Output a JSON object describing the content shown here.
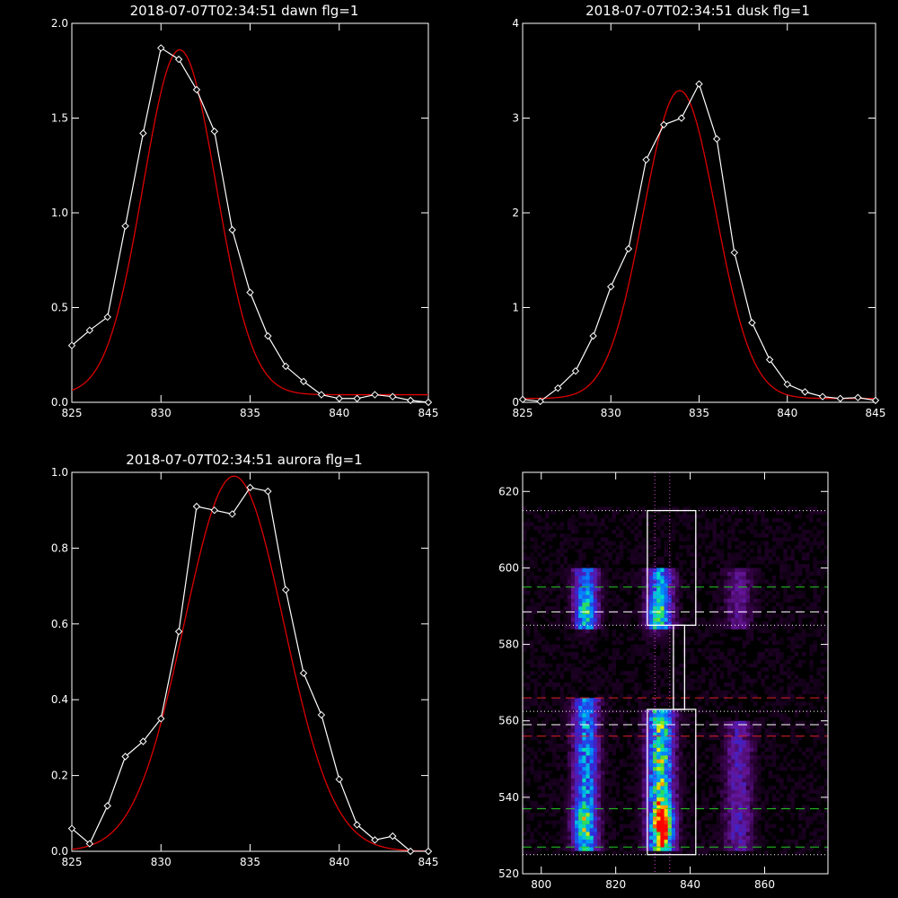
{
  "colors": {
    "background": "#000000",
    "axis": "#ffffff",
    "data": "#ffffff",
    "fit": "#dd0000",
    "box": "#ffffff",
    "dotted_line": "#ffffff",
    "green_dashed": "#22cc22",
    "red_dashed": "#dd2222",
    "white_dashed": "#ffffff",
    "magenta_dotted": "#dd44dd"
  },
  "chart_data": [
    {
      "type": "line",
      "title": "2018-07-07T02:34:51 dawn flg=1",
      "xlabel": "",
      "ylabel": "",
      "xlim": [
        825,
        845
      ],
      "ylim": [
        0,
        2.0
      ],
      "xticks": [
        825,
        830,
        835,
        840,
        845
      ],
      "xtick_labels": [
        "825",
        "830",
        "835",
        "840",
        "845"
      ],
      "yticks": [
        0,
        0.5,
        1.0,
        1.5,
        2.0
      ],
      "ytick_labels": [
        "0.0",
        "0.5",
        "1.0",
        "1.5",
        "2.0"
      ],
      "marker": "diamond",
      "x": [
        825,
        826,
        827,
        828,
        829,
        830,
        831,
        832,
        833,
        834,
        835,
        836,
        837,
        838,
        839,
        840,
        841,
        842,
        843,
        844,
        845
      ],
      "y": [
        0.3,
        0.38,
        0.45,
        0.93,
        1.42,
        1.87,
        1.81,
        1.65,
        1.43,
        0.91,
        0.58,
        0.35,
        0.19,
        0.11,
        0.04,
        0.02,
        0.02,
        0.04,
        0.03,
        0.01,
        0.0
      ],
      "fit": {
        "type": "gaussian",
        "amplitude": 1.82,
        "center": 831.05,
        "sigma": 2.05,
        "offset": 0.04
      }
    },
    {
      "type": "line",
      "title": "2018-07-07T02:34:51 dusk flg=1",
      "xlabel": "",
      "ylabel": "",
      "xlim": [
        825,
        845
      ],
      "ylim": [
        0,
        4
      ],
      "xticks": [
        825,
        830,
        835,
        840,
        845
      ],
      "xtick_labels": [
        "825",
        "830",
        "835",
        "840",
        "845"
      ],
      "yticks": [
        0,
        1,
        2,
        3,
        4
      ],
      "ytick_labels": [
        "0",
        "1",
        "2",
        "3",
        "4"
      ],
      "marker": "diamond",
      "x": [
        825,
        826,
        827,
        828,
        829,
        830,
        831,
        832,
        833,
        834,
        835,
        836,
        837,
        838,
        839,
        840,
        841,
        842,
        843,
        844,
        845
      ],
      "y": [
        0.03,
        0.01,
        0.15,
        0.33,
        0.7,
        1.22,
        1.62,
        2.56,
        2.93,
        3.0,
        3.36,
        2.78,
        1.58,
        0.84,
        0.45,
        0.19,
        0.11,
        0.06,
        0.04,
        0.05,
        0.02
      ],
      "fit": {
        "type": "gaussian",
        "amplitude": 3.25,
        "center": 833.9,
        "sigma": 2.05,
        "offset": 0.04
      }
    },
    {
      "type": "line",
      "title": "2018-07-07T02:34:51 aurora flg=1",
      "xlabel": "",
      "ylabel": "",
      "xlim": [
        825,
        845
      ],
      "ylim": [
        0,
        1.0
      ],
      "xticks": [
        825,
        830,
        835,
        840,
        845
      ],
      "xtick_labels": [
        "825",
        "830",
        "835",
        "840",
        "845"
      ],
      "yticks": [
        0,
        0.2,
        0.4,
        0.6,
        0.8,
        1.0
      ],
      "ytick_labels": [
        "0.0",
        "0.2",
        "0.4",
        "0.6",
        "0.8",
        "1.0"
      ],
      "marker": "diamond",
      "x": [
        825,
        826,
        827,
        828,
        829,
        830,
        831,
        832,
        833,
        834,
        835,
        836,
        837,
        838,
        839,
        840,
        841,
        842,
        843,
        844,
        845
      ],
      "y": [
        0.06,
        0.02,
        0.12,
        0.25,
        0.29,
        0.35,
        0.58,
        0.91,
        0.9,
        0.89,
        0.96,
        0.95,
        0.69,
        0.47,
        0.36,
        0.19,
        0.07,
        0.03,
        0.04,
        0.0,
        0.0
      ],
      "fit": {
        "type": "gaussian",
        "amplitude": 0.99,
        "center": 834.1,
        "sigma": 2.8,
        "offset": 0.0
      }
    },
    {
      "type": "heatmap",
      "title": "",
      "xlabel": "",
      "ylabel": "",
      "xlim": [
        795,
        877
      ],
      "ylim": [
        520,
        625
      ],
      "xticks": [
        800,
        820,
        840,
        860
      ],
      "xtick_labels": [
        "800",
        "820",
        "840",
        "860"
      ],
      "yticks": [
        520,
        540,
        560,
        580,
        600,
        620
      ],
      "ytick_labels": [
        "520",
        "540",
        "560",
        "580",
        "600",
        "620"
      ],
      "colormap": "rainbow",
      "emission_columns": [
        {
          "center": 812,
          "width": 2.2,
          "segments": [
            [
              526,
              566,
              0.55
            ],
            [
              584,
              600,
              0.45
            ]
          ]
        },
        {
          "center": 832,
          "width": 2.3,
          "segments": [
            [
              526,
              563,
              0.8
            ],
            [
              584,
              600,
              0.55
            ]
          ]
        },
        {
          "center": 853,
          "width": 2.5,
          "segments": [
            [
              526,
              560,
              0.25
            ],
            [
              584,
              600,
              0.18
            ]
          ]
        }
      ],
      "hotspots": [
        {
          "x": 833,
          "y": 533,
          "intensity": 1.0
        },
        {
          "x": 811,
          "y": 533,
          "intensity": 0.6
        },
        {
          "x": 812,
          "y": 589,
          "intensity": 0.5
        },
        {
          "x": 831,
          "y": 588,
          "intensity": 0.55
        }
      ],
      "boxes": [
        {
          "x0": 828.5,
          "x1": 841.5,
          "y0": 585,
          "y1": 615
        },
        {
          "x0": 835.5,
          "x1": 838.5,
          "y0": 563,
          "y1": 585
        },
        {
          "x0": 828.5,
          "x1": 841.5,
          "y0": 525,
          "y1": 563
        }
      ],
      "horizontal_lines": [
        {
          "y": 615,
          "style": "dotted",
          "color": "#ffffff"
        },
        {
          "y": 595,
          "style": "dashed",
          "color": "#22cc22"
        },
        {
          "y": 588.5,
          "style": "dashed",
          "color": "#ffffff"
        },
        {
          "y": 585,
          "style": "dotted",
          "color": "#ffffff"
        },
        {
          "y": 566,
          "style": "dashed",
          "color": "#dd2222"
        },
        {
          "y": 562.5,
          "style": "dotted",
          "color": "#ffffff"
        },
        {
          "y": 559,
          "style": "dashed",
          "color": "#ffffff"
        },
        {
          "y": 556,
          "style": "dashed",
          "color": "#dd2222"
        },
        {
          "y": 537,
          "style": "dashed",
          "color": "#22cc22"
        },
        {
          "y": 527,
          "style": "dashed",
          "color": "#22cc22"
        },
        {
          "y": 525,
          "style": "dotted",
          "color": "#ffffff"
        }
      ],
      "vertical_lines": [
        {
          "x": 830.5,
          "style": "dotted",
          "color": "#dd44dd"
        },
        {
          "x": 834.5,
          "style": "dotted",
          "color": "#dd44dd"
        }
      ]
    }
  ]
}
